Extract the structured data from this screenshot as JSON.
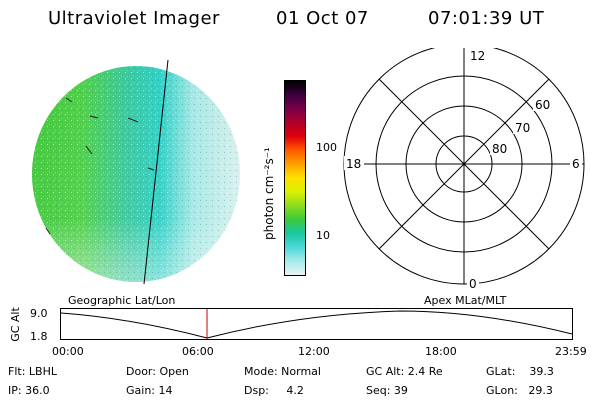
{
  "header": {
    "title": "Ultraviolet Imager",
    "date": "01 Oct 07",
    "time": "07:01:39 UT"
  },
  "colorbar": {
    "unit_label": "photon cm⁻²s⁻¹",
    "ticks": [
      "100",
      "10"
    ],
    "colors_top_to_bottom": [
      "#000000",
      "#3a0040",
      "#7a0048",
      "#b0002a",
      "#e0000a",
      "#ff5a00",
      "#ffa000",
      "#ffe000",
      "#d8f000",
      "#8cdc20",
      "#3cc83c",
      "#18c8a0",
      "#4cd8d8",
      "#a8eaea",
      "#e6f4f4"
    ]
  },
  "polar_grid": {
    "mlt_labels": {
      "top": "12",
      "left": "18",
      "right": "6",
      "bottom": "0"
    },
    "lat_labels": [
      "60",
      "70",
      "80"
    ]
  },
  "timeline": {
    "left_caption": "Geographic Lat/Lon",
    "right_caption": "Apex MLat/MLT",
    "y_axis_label": "GC Alt",
    "y_ticks": [
      "9.0",
      "1.8"
    ],
    "x_ticks": [
      "00:00",
      "06:00",
      "12:00",
      "18:00",
      "23:59"
    ],
    "marker_color": "#c00000"
  },
  "status": {
    "flt": "Flt: LBHL",
    "ip": "IP: 36.0",
    "door": "Door: Open",
    "gain": "Gain: 14",
    "mode": "Mode: Normal",
    "dsp": "Dsp:     4.2",
    "gc_alt": "GC Alt: 2.4 Re",
    "seq": "Seq: 39",
    "glat": "GLat:    39.3",
    "glon": "GLon:   29.3"
  }
}
